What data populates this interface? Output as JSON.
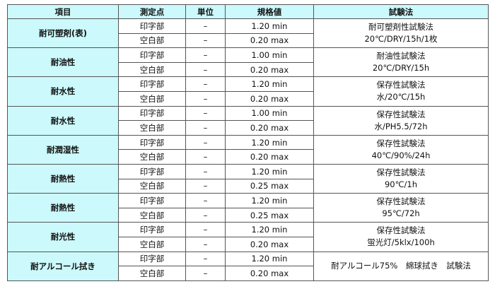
{
  "headers": [
    "項目",
    "測定点",
    "単位",
    "規格値",
    "試験法"
  ],
  "groups": [
    {
      "item": "耐可塑剤(表)",
      "rows": [
        {
          "point": "印字部",
          "unit": "–",
          "spec": "1.20 min"
        },
        {
          "point": "空白部",
          "unit": "–",
          "spec": "0.20 max"
        }
      ],
      "method": [
        "耐可塑剤性試験法",
        "20℃/DRY/15h/1枚"
      ]
    },
    {
      "item": "耐油性",
      "rows": [
        {
          "point": "印字部",
          "unit": "–",
          "spec": "1.00 min"
        },
        {
          "point": "空白部",
          "unit": "–",
          "spec": "0.20 max"
        }
      ],
      "method": [
        "耐油性試験法",
        "20℃/DRY/15h"
      ]
    },
    {
      "item": "耐水性",
      "rows": [
        {
          "point": "印字部",
          "unit": "–",
          "spec": "1.20 min"
        },
        {
          "point": "空白部",
          "unit": "–",
          "spec": "0.20 max"
        }
      ],
      "method": [
        "保存性試験法",
        "水/20℃/15h"
      ]
    },
    {
      "item": "耐水性",
      "rows": [
        {
          "point": "印字部",
          "unit": "–",
          "spec": "1.00 min"
        },
        {
          "point": "空白部",
          "unit": "–",
          "spec": "0.20 max"
        }
      ],
      "method": [
        "保存性試験法",
        "水/PH5.5/72h"
      ]
    },
    {
      "item": "耐潤湿性",
      "rows": [
        {
          "point": "印字部",
          "unit": "–",
          "spec": "1.20 min"
        },
        {
          "point": "空白部",
          "unit": "–",
          "spec": "0.20 max"
        }
      ],
      "method": [
        "保存性試験法",
        "40℃/90%/24h"
      ]
    },
    {
      "item": "耐熱性",
      "rows": [
        {
          "point": "印字部",
          "unit": "–",
          "spec": "1.20 min"
        },
        {
          "point": "空白部",
          "unit": "–",
          "spec": "0.25 max"
        }
      ],
      "method": [
        "保存性試験法",
        "90℃/1h"
      ]
    },
    {
      "item": "耐熱性",
      "rows": [
        {
          "point": "印字部",
          "unit": "–",
          "spec": "1.20 min"
        },
        {
          "point": "空白部",
          "unit": "–",
          "spec": "0.25 max"
        }
      ],
      "method": [
        "保存性試験法",
        "95℃/72h"
      ]
    },
    {
      "item": "耐光性",
      "rows": [
        {
          "point": "印字部",
          "unit": "–",
          "spec": "1.20 min"
        },
        {
          "point": "空白部",
          "unit": "–",
          "spec": "0.20 max"
        }
      ],
      "method": [
        "保存性試験法",
        "蛍光灯/5klx/100h"
      ]
    },
    {
      "item": "耐アルコール拭き",
      "rows": [
        {
          "point": "印字部",
          "unit": "–",
          "spec": "1.20 min"
        },
        {
          "point": "空白部",
          "unit": "–",
          "spec": "0.20 max"
        }
      ],
      "method": [
        "耐アルコール75%　綿球拭き　試験法"
      ]
    }
  ]
}
